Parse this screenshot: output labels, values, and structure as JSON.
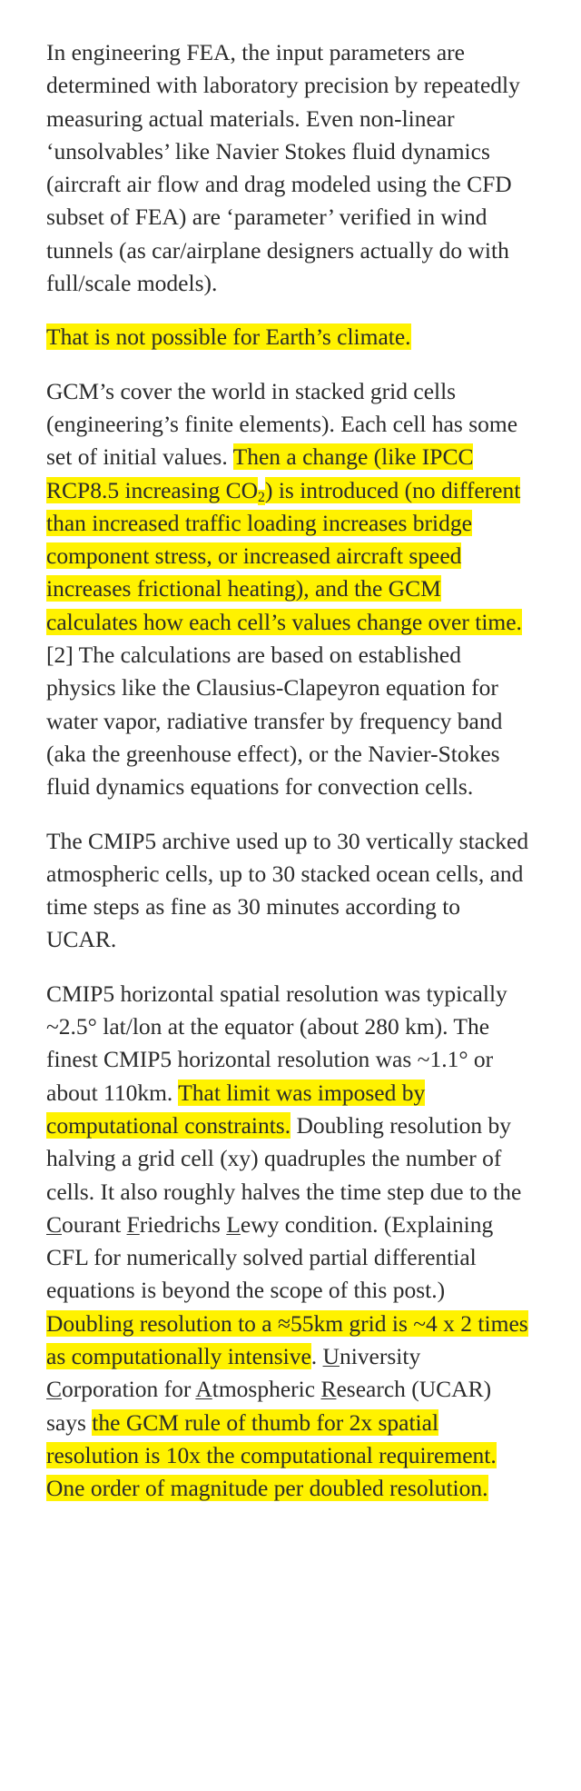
{
  "paragraphs": [
    {
      "segments": [
        {
          "text": "In engineering FEA, the input parameters are determined with laboratory precision by repeatedly measuring actual materials. Even non-linear ‘unsolvables’ like Navier Stokes fluid dynamics (aircraft air flow and drag modeled using the CFD subset of FEA) are ‘parameter’ verified in wind tunnels (as car/airplane designers actually do with full/scale models).",
          "highlight": false
        }
      ]
    },
    {
      "segments": [
        {
          "text": "That is not possible for Earth’s climate.",
          "highlight": true
        }
      ]
    },
    {
      "segments": [
        {
          "text": "GCM’s cover the world in stacked grid cells (engineering’s finite elements). Each cell has some set of initial values. ",
          "highlight": false
        },
        {
          "text": "Then a change (like IPCC RCP8.5 increasing CO",
          "highlight": true
        },
        {
          "text": "2",
          "highlight": true,
          "sub": true
        },
        {
          "text": ") is introduced (no different than increased traffic loading increases bridge component stress, or increased aircraft speed increases frictional heating), and the GCM calculates how each cell’s values change over time.",
          "highlight": true
        },
        {
          "text": "[2] The calculations are based on established physics like the Clausius-Clapeyron equation for water vapor, radiative transfer by frequency band (aka the greenhouse effect), or the Navier-Stokes fluid dynamics equations for convection cells.",
          "highlight": false
        }
      ]
    },
    {
      "segments": [
        {
          "text": "The CMIP5 archive used up to 30 vertically stacked atmospheric cells, up to 30 stacked ocean cells, and time steps as fine as 30 minutes according to UCAR.",
          "highlight": false
        }
      ]
    },
    {
      "segments": [
        {
          "text": "CMIP5 horizontal spatial resolution was typically ~2.5° lat/lon at the equator (about 280 km). The finest CMIP5 horizontal resolution was ~1.1° or about 110km. ",
          "highlight": false
        },
        {
          "text": "That limit was imposed by computational constraints.",
          "highlight": true
        },
        {
          "text": " Doubling resolution by halving a grid cell (xy) quadruples the number of cells. It also roughly halves the time step due to the ",
          "highlight": false
        },
        {
          "text": "C",
          "highlight": false,
          "underline": true
        },
        {
          "text": "ourant ",
          "highlight": false
        },
        {
          "text": "F",
          "highlight": false,
          "underline": true
        },
        {
          "text": "riedrichs ",
          "highlight": false
        },
        {
          "text": "L",
          "highlight": false,
          "underline": true
        },
        {
          "text": "ewy condition. (Explaining CFL for numerically solved partial differential equations is beyond the scope of this post.) ",
          "highlight": false
        },
        {
          "text": "Doubling resolution to a ≈55km grid is ~4 x 2 times as computationally intensive",
          "highlight": true
        },
        {
          "text": ". ",
          "highlight": false
        },
        {
          "text": "U",
          "highlight": false,
          "underline": true
        },
        {
          "text": "niversity ",
          "highlight": false
        },
        {
          "text": "C",
          "highlight": false,
          "underline": true
        },
        {
          "text": "orporation for ",
          "highlight": false
        },
        {
          "text": "A",
          "highlight": false,
          "underline": true
        },
        {
          "text": "tmospheric ",
          "highlight": false
        },
        {
          "text": "R",
          "highlight": false,
          "underline": true
        },
        {
          "text": "esearch (UCAR) says ",
          "highlight": false
        },
        {
          "text": "the GCM rule of thumb for 2x spatial resolution is 10x the computational requirement. One order of magnitude per doubled resolution.",
          "highlight": true
        }
      ]
    }
  ]
}
